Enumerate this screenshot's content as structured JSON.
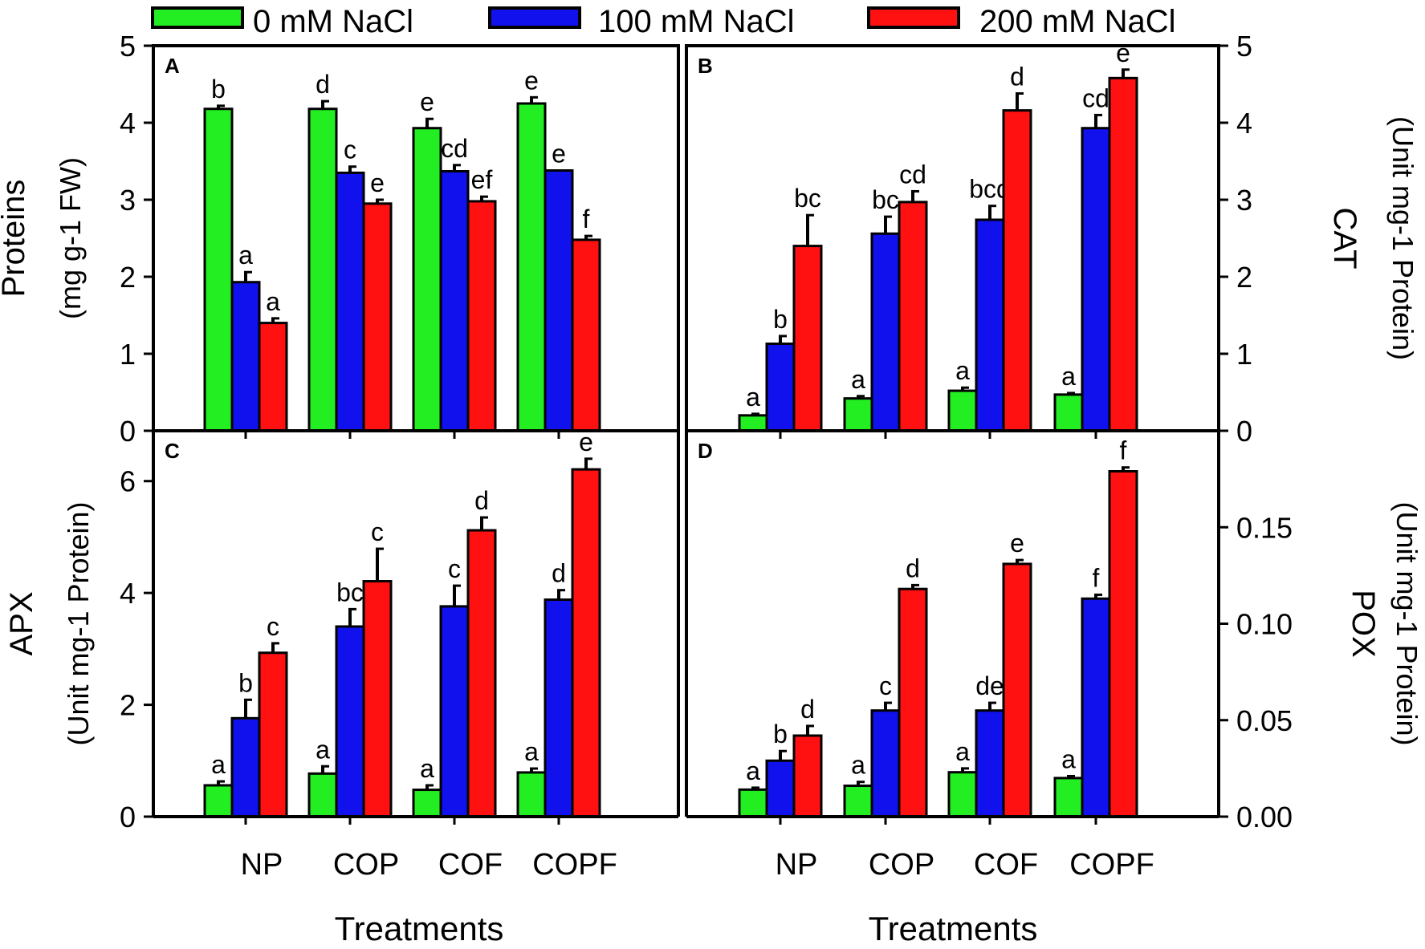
{
  "legend": {
    "items": [
      {
        "label": "0 mM NaCl",
        "color": "#22ee22"
      },
      {
        "label": "100 mM NaCl",
        "color": "#1111ee"
      },
      {
        "label": "200 mM NaCl",
        "color": "#ff1111"
      }
    ]
  },
  "x_axis_title": "Treatments",
  "categories": [
    "NP",
    "COP",
    "COF",
    "COPF"
  ],
  "chart_data": [
    {
      "type": "bar",
      "panel": "A",
      "ylabel_line1": "Proteins",
      "ylabel_line2": "(mg g-1 FW)",
      "ylim": [
        0,
        5
      ],
      "yticks": [
        "0",
        "1",
        "2",
        "3",
        "4",
        "5"
      ],
      "ytick_values": [
        0,
        1,
        2,
        3,
        4,
        5
      ],
      "categories": [
        "NP",
        "COP",
        "COF",
        "COPF"
      ],
      "series": [
        {
          "name": "0 mM NaCl",
          "values": [
            4.18,
            4.18,
            3.93,
            4.25
          ],
          "errors": [
            0.04,
            0.1,
            0.12,
            0.08
          ],
          "letters": [
            "b",
            "d",
            "e",
            "e"
          ]
        },
        {
          "name": "100 mM NaCl",
          "values": [
            1.93,
            3.35,
            3.37,
            3.38
          ],
          "errors": [
            0.13,
            0.08,
            0.08,
            0.0
          ],
          "letters": [
            "a",
            "c",
            "cd",
            "e"
          ]
        },
        {
          "name": "200 mM NaCl",
          "values": [
            1.4,
            2.95,
            2.98,
            2.48
          ],
          "errors": [
            0.06,
            0.05,
            0.06,
            0.05
          ],
          "letters": [
            "a",
            "e",
            "ef",
            "f"
          ]
        }
      ]
    },
    {
      "type": "bar",
      "panel": "B",
      "ylabel_line1": "CAT",
      "ylabel_line2": "(Unit mg-1 Protein)",
      "ylim": [
        0,
        5
      ],
      "yticks": [
        "0",
        "1",
        "2",
        "3",
        "4",
        "5"
      ],
      "ytick_values": [
        0,
        1,
        2,
        3,
        4,
        5
      ],
      "categories": [
        "NP",
        "COP",
        "COF",
        "COPF"
      ],
      "series": [
        {
          "name": "0 mM NaCl",
          "values": [
            0.2,
            0.42,
            0.52,
            0.47
          ],
          "errors": [
            0.02,
            0.03,
            0.04,
            0.02
          ],
          "letters": [
            "a",
            "a",
            "a",
            "a"
          ]
        },
        {
          "name": "100 mM NaCl",
          "values": [
            1.13,
            2.56,
            2.74,
            3.93
          ],
          "errors": [
            0.1,
            0.22,
            0.18,
            0.17
          ],
          "letters": [
            "b",
            "bc",
            "bcd",
            "cd"
          ]
        },
        {
          "name": "200 mM NaCl",
          "values": [
            2.4,
            2.97,
            4.16,
            4.58
          ],
          "errors": [
            0.4,
            0.14,
            0.22,
            0.11
          ],
          "letters": [
            "bc",
            "cd",
            "d",
            "e"
          ]
        }
      ]
    },
    {
      "type": "bar",
      "panel": "C",
      "ylabel_line1": "APX",
      "ylabel_line2": "(Unit mg-1 Protein)",
      "ylim": [
        0,
        6.9
      ],
      "yticks": [
        "0",
        "2",
        "4",
        "6"
      ],
      "ytick_values": [
        0,
        2,
        4,
        6
      ],
      "categories": [
        "NP",
        "COP",
        "COF",
        "COPF"
      ],
      "series": [
        {
          "name": "0 mM NaCl",
          "values": [
            0.56,
            0.77,
            0.48,
            0.79
          ],
          "errors": [
            0.07,
            0.13,
            0.08,
            0.07
          ],
          "letters": [
            "a",
            "a",
            "a",
            "a"
          ]
        },
        {
          "name": "100 mM NaCl",
          "values": [
            1.76,
            3.4,
            3.76,
            3.88
          ],
          "errors": [
            0.33,
            0.31,
            0.37,
            0.17
          ],
          "letters": [
            "b",
            "bc",
            "c",
            "d"
          ]
        },
        {
          "name": "200 mM NaCl",
          "values": [
            2.93,
            4.21,
            5.12,
            6.21
          ],
          "errors": [
            0.17,
            0.58,
            0.23,
            0.19
          ],
          "letters": [
            "c",
            "c",
            "d",
            "e"
          ]
        }
      ]
    },
    {
      "type": "bar",
      "panel": "D",
      "ylabel_line1": "POX",
      "ylabel_line2": "(Unit mg-1 Protein)",
      "ylim": [
        0,
        0.2
      ],
      "yticks": [
        "0.00",
        "0.05",
        "0.10",
        "0.15"
      ],
      "ytick_values": [
        0,
        0.05,
        0.1,
        0.15
      ],
      "categories": [
        "NP",
        "COP",
        "COF",
        "COPF"
      ],
      "series": [
        {
          "name": "0 mM NaCl",
          "values": [
            0.014,
            0.016,
            0.023,
            0.02
          ],
          "errors": [
            0.001,
            0.002,
            0.002,
            0.001
          ],
          "letters": [
            "a",
            "a",
            "a",
            "a"
          ]
        },
        {
          "name": "100 mM NaCl",
          "values": [
            0.029,
            0.055,
            0.055,
            0.113
          ],
          "errors": [
            0.005,
            0.004,
            0.004,
            0.002
          ],
          "letters": [
            "b",
            "c",
            "de",
            "f"
          ]
        },
        {
          "name": "200 mM NaCl",
          "values": [
            0.042,
            0.118,
            0.131,
            0.179
          ],
          "errors": [
            0.005,
            0.002,
            0.002,
            0.002
          ],
          "letters": [
            "d",
            "d",
            "e",
            "f"
          ]
        }
      ]
    }
  ]
}
